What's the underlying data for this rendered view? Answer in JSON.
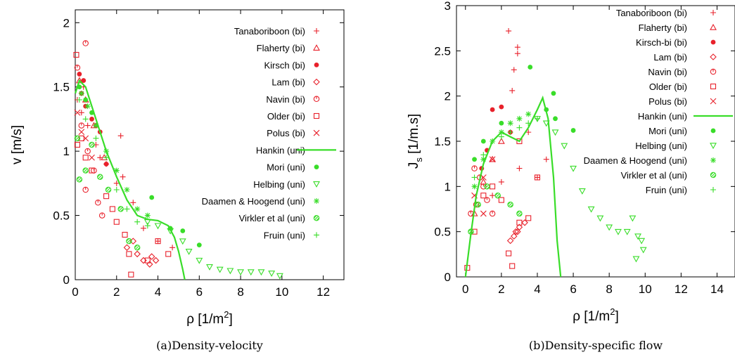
{
  "colors": {
    "bi": "#e8212b",
    "uni": "#39dd29"
  },
  "chart_data": [
    {
      "type": "scatter",
      "caption": "(a)Density-velocity",
      "xlabel": {
        "main": "ρ  [1/m",
        "sup": "2",
        "end": "]"
      },
      "ylabel": "v  [m/s]",
      "xlim": [
        0,
        13
      ],
      "ylim": [
        0,
        2.1
      ],
      "xticks": [
        0,
        2,
        4,
        6,
        8,
        10,
        12
      ],
      "yticks": [
        0,
        0.5,
        1,
        1.5,
        2
      ],
      "yticklabels": [
        "0",
        "0.5",
        "1",
        "1.5",
        "2"
      ],
      "legend_position": "top-right",
      "legend": [
        {
          "name": "Tanaboriboon (bi)",
          "marker": "plus",
          "group": "bi"
        },
        {
          "name": "Flaherty (bi)",
          "marker": "triangle",
          "group": "bi"
        },
        {
          "name": "Kirsch (bi)",
          "marker": "dot",
          "group": "bi"
        },
        {
          "name": "Lam (bi)",
          "marker": "diamond",
          "group": "bi"
        },
        {
          "name": "Navin (bi)",
          "marker": "circlebar",
          "group": "bi"
        },
        {
          "name": "Older (bi)",
          "marker": "square",
          "group": "bi"
        },
        {
          "name": "Polus (bi)",
          "marker": "cross",
          "group": "bi"
        },
        {
          "name": "Hankin (uni)",
          "marker": "line",
          "group": "uni"
        },
        {
          "name": "Mori (uni)",
          "marker": "dot",
          "group": "uni"
        },
        {
          "name": "Helbing (uni)",
          "marker": "triangledown",
          "group": "uni"
        },
        {
          "name": "Daamen & Hoogend (uni)",
          "marker": "star",
          "group": "uni"
        },
        {
          "name": "Virkler et al (uni)",
          "marker": "circlehatch",
          "group": "uni"
        },
        {
          "name": "Fruin (uni)",
          "marker": "plus",
          "group": "uni"
        }
      ],
      "curve": {
        "name": "Hankin (uni)",
        "x": [
          0,
          0.2,
          0.5,
          1,
          1.5,
          2,
          2.5,
          3,
          3.5,
          4,
          4.5,
          4.8,
          5.0,
          5.2,
          5.3
        ],
        "y": [
          1.45,
          1.55,
          1.5,
          1.25,
          1.0,
          0.8,
          0.62,
          0.5,
          0.47,
          0.46,
          0.42,
          0.33,
          0.22,
          0.08,
          0.0
        ]
      },
      "points": {
        "Tanaboriboon (bi)": [
          [
            0.1,
            1.4
          ],
          [
            0.3,
            1.3
          ],
          [
            0.6,
            1.2
          ],
          [
            1.0,
            1.05
          ],
          [
            1.5,
            0.9
          ],
          [
            2.0,
            0.75
          ],
          [
            2.2,
            1.12
          ],
          [
            2.3,
            0.8
          ],
          [
            2.8,
            0.6
          ],
          [
            3.3,
            0.4
          ],
          [
            4.0,
            0.3
          ],
          [
            4.7,
            0.25
          ],
          [
            0.4,
            1.5
          ],
          [
            1.2,
            0.95
          ]
        ],
        "Flaherty (bi)": [
          [
            0.2,
            1.55
          ],
          [
            0.5,
            1.4
          ],
          [
            0.9,
            1.2
          ],
          [
            1.4,
            0.95
          ]
        ],
        "Kirsch (bi)": [
          [
            0.2,
            1.6
          ],
          [
            0.3,
            1.45
          ],
          [
            0.5,
            1.35
          ],
          [
            0.8,
            1.25
          ],
          [
            1.0,
            1.2
          ],
          [
            1.2,
            1.15
          ],
          [
            1.5,
            0.9
          ],
          [
            0.4,
            1.55
          ]
        ],
        "Lam (bi)": [
          [
            2.5,
            0.25
          ],
          [
            3.0,
            0.2
          ],
          [
            3.3,
            0.15
          ],
          [
            3.6,
            0.12
          ],
          [
            3.9,
            0.15
          ],
          [
            2.8,
            0.3
          ],
          [
            3.7,
            0.18
          ]
        ],
        "Navin (bi)": [
          [
            0.1,
            1.65
          ],
          [
            0.5,
            1.84
          ],
          [
            0.3,
            1.2
          ],
          [
            0.6,
            1.0
          ],
          [
            0.9,
            0.85
          ],
          [
            1.1,
            0.6
          ],
          [
            1.3,
            0.5
          ],
          [
            0.5,
            0.7
          ]
        ],
        "Older (bi)": [
          [
            0.05,
            1.75
          ],
          [
            0.1,
            1.05
          ],
          [
            0.3,
            1.1
          ],
          [
            0.5,
            0.95
          ],
          [
            0.8,
            0.85
          ],
          [
            1.5,
            0.65
          ],
          [
            1.8,
            0.55
          ],
          [
            2.0,
            0.45
          ],
          [
            2.4,
            0.35
          ],
          [
            2.6,
            0.2
          ],
          [
            2.7,
            0.04
          ],
          [
            3.5,
            0.15
          ],
          [
            4.0,
            0.3
          ],
          [
            4.5,
            0.2
          ]
        ],
        "Polus (bi)": [
          [
            0.1,
            1.3
          ],
          [
            0.3,
            1.15
          ],
          [
            0.5,
            1.1
          ],
          [
            0.8,
            0.95
          ]
        ],
        "Mori (uni)": [
          [
            0.2,
            1.5
          ],
          [
            0.5,
            1.4
          ],
          [
            0.8,
            1.3
          ],
          [
            3.7,
            0.64
          ],
          [
            4.6,
            0.4
          ],
          [
            5.2,
            0.38
          ],
          [
            6.0,
            0.27
          ]
        ],
        "Helbing (uni)": [
          [
            3.5,
            0.45
          ],
          [
            4.0,
            0.42
          ],
          [
            4.6,
            0.38
          ],
          [
            5.2,
            0.3
          ],
          [
            5.5,
            0.22
          ],
          [
            6.0,
            0.15
          ],
          [
            6.5,
            0.1
          ],
          [
            7.0,
            0.08
          ],
          [
            7.5,
            0.07
          ],
          [
            8.0,
            0.06
          ],
          [
            8.5,
            0.06
          ],
          [
            9.0,
            0.06
          ],
          [
            9.5,
            0.05
          ],
          [
            9.9,
            0.03
          ]
        ],
        "Daamen & Hoogend (uni)": [
          [
            0.3,
            1.45
          ],
          [
            0.6,
            1.35
          ],
          [
            1.0,
            1.2
          ],
          [
            1.5,
            1.0
          ],
          [
            2.0,
            0.85
          ],
          [
            2.5,
            0.7
          ],
          [
            3.0,
            0.55
          ],
          [
            3.5,
            0.5
          ]
        ],
        "Virkler et al (uni)": [
          [
            0.1,
            1.1
          ],
          [
            0.2,
            0.78
          ],
          [
            0.5,
            0.85
          ],
          [
            0.8,
            1.05
          ],
          [
            1.2,
            0.8
          ],
          [
            1.6,
            0.7
          ],
          [
            2.2,
            0.55
          ],
          [
            2.6,
            0.3
          ],
          [
            3.0,
            0.25
          ]
        ],
        "Fruin (uni)": [
          [
            0.2,
            1.4
          ],
          [
            0.5,
            1.25
          ],
          [
            1.0,
            1.1
          ],
          [
            1.5,
            0.95
          ],
          [
            2.0,
            0.7
          ],
          [
            2.5,
            0.55
          ],
          [
            3.0,
            0.45
          ],
          [
            3.5,
            0.42
          ]
        ]
      }
    },
    {
      "type": "scatter",
      "caption": "(b)Density-specific flow",
      "xlabel": {
        "main": "ρ  [1/m",
        "sup": "2",
        "end": "]"
      },
      "ylabel": {
        "main": "J",
        "sub": "s",
        "end": "  [1/m.s]"
      },
      "xlim": [
        -0.5,
        15
      ],
      "ylim": [
        0,
        3
      ],
      "xticks": [
        0,
        2,
        4,
        6,
        8,
        10,
        12,
        14
      ],
      "yticks": [
        0,
        0.5,
        1,
        1.5,
        2,
        2.5,
        3
      ],
      "yticklabels": [
        "0",
        "0.5",
        "1",
        "1.5",
        "2",
        "2.5",
        "3"
      ],
      "legend_position": "top-right",
      "legend": [
        {
          "name": "Tanaboriboon (bi)",
          "marker": "plus",
          "group": "bi"
        },
        {
          "name": "Flaherty (bi)",
          "marker": "triangle",
          "group": "bi"
        },
        {
          "name": "Kirsch-bi (bi)",
          "marker": "dot",
          "group": "bi"
        },
        {
          "name": "Lam (bi)",
          "marker": "diamond",
          "group": "bi"
        },
        {
          "name": "Navin (bi)",
          "marker": "circlebar",
          "group": "bi"
        },
        {
          "name": "Older (bi)",
          "marker": "square",
          "group": "bi"
        },
        {
          "name": "Polus (bi)",
          "marker": "cross",
          "group": "bi"
        },
        {
          "name": "Hankin (uni)",
          "marker": "line",
          "group": "uni"
        },
        {
          "name": "Mori (uni)",
          "marker": "dot",
          "group": "uni"
        },
        {
          "name": "Helbing (uni)",
          "marker": "triangledown",
          "group": "uni"
        },
        {
          "name": "Daamen & Hoogend (uni)",
          "marker": "star",
          "group": "uni"
        },
        {
          "name": "Virkler et al (uni)",
          "marker": "circlehatch",
          "group": "uni"
        },
        {
          "name": "Fruin (uni)",
          "marker": "plus",
          "group": "uni"
        }
      ],
      "curve": {
        "name": "Hankin (uni)",
        "x": [
          0,
          0.3,
          0.6,
          1.0,
          1.5,
          2.0,
          2.5,
          3.0,
          3.5,
          4.0,
          4.3,
          4.6,
          4.9,
          5.1,
          5.3
        ],
        "y": [
          0,
          0.47,
          0.9,
          1.25,
          1.5,
          1.6,
          1.55,
          1.5,
          1.65,
          1.85,
          1.98,
          1.75,
          1.1,
          0.4,
          0.0
        ]
      },
      "points": {
        "Tanaboriboon (bi)": [
          [
            2.4,
            2.72
          ],
          [
            2.9,
            2.54
          ],
          [
            2.9,
            2.47
          ],
          [
            2.7,
            2.29
          ],
          [
            2.6,
            2.06
          ],
          [
            3.5,
            1.6
          ],
          [
            3.0,
            1.2
          ],
          [
            2.0,
            1.05
          ],
          [
            1.5,
            0.9
          ],
          [
            4.5,
            1.3
          ],
          [
            4.0,
            1.1
          ]
        ],
        "Flaherty (bi)": [
          [
            0.5,
            0.7
          ],
          [
            1.0,
            1.05
          ],
          [
            1.5,
            1.3
          ],
          [
            2.0,
            1.5
          ]
        ],
        "Kirsch-bi (bi)": [
          [
            1.5,
            1.85
          ],
          [
            2.0,
            1.88
          ],
          [
            2.5,
            1.6
          ],
          [
            1.2,
            1.4
          ],
          [
            0.9,
            1.2
          ]
        ],
        "Lam (bi)": [
          [
            2.5,
            0.4
          ],
          [
            2.8,
            0.5
          ],
          [
            3.0,
            0.55
          ],
          [
            3.3,
            0.6
          ],
          [
            2.7,
            0.45
          ],
          [
            2.9,
            0.5
          ]
        ],
        "Navin (bi)": [
          [
            0.3,
            0.7
          ],
          [
            0.6,
            0.8
          ],
          [
            1.0,
            1.0
          ],
          [
            1.2,
            0.85
          ],
          [
            0.8,
            1.1
          ],
          [
            1.5,
            0.7
          ],
          [
            0.5,
            1.2
          ]
        ],
        "Older (bi)": [
          [
            0.1,
            0.1
          ],
          [
            0.5,
            0.5
          ],
          [
            1.0,
            0.9
          ],
          [
            1.5,
            1.0
          ],
          [
            2.0,
            0.85
          ],
          [
            2.4,
            0.26
          ],
          [
            2.6,
            0.12
          ],
          [
            3.0,
            0.6
          ],
          [
            3.5,
            0.65
          ],
          [
            4.0,
            1.1
          ],
          [
            3.0,
            1.5
          ]
        ],
        "Polus (bi)": [
          [
            0.5,
            0.9
          ],
          [
            1.0,
            1.1
          ],
          [
            1.5,
            1.3
          ],
          [
            1.0,
            0.7
          ]
        ],
        "Mori (uni)": [
          [
            0.5,
            1.3
          ],
          [
            1.0,
            1.5
          ],
          [
            2.0,
            1.7
          ],
          [
            3.6,
            2.32
          ],
          [
            4.9,
            2.03
          ],
          [
            4.5,
            1.85
          ],
          [
            6.0,
            1.62
          ],
          [
            5.0,
            1.75
          ]
        ],
        "Helbing (uni)": [
          [
            4.0,
            1.75
          ],
          [
            4.5,
            1.7
          ],
          [
            5.0,
            1.6
          ],
          [
            5.5,
            1.45
          ],
          [
            6.0,
            1.2
          ],
          [
            6.5,
            0.95
          ],
          [
            7.0,
            0.75
          ],
          [
            7.5,
            0.65
          ],
          [
            8.0,
            0.55
          ],
          [
            8.5,
            0.5
          ],
          [
            9.0,
            0.5
          ],
          [
            9.3,
            0.65
          ],
          [
            9.6,
            0.45
          ],
          [
            9.8,
            0.4
          ],
          [
            9.9,
            0.3
          ],
          [
            9.5,
            0.2
          ]
        ],
        "Daamen & Hoogend (uni)": [
          [
            0.5,
            1.0
          ],
          [
            1.0,
            1.3
          ],
          [
            1.5,
            1.5
          ],
          [
            2.0,
            1.6
          ],
          [
            2.5,
            1.7
          ],
          [
            3.0,
            1.75
          ],
          [
            3.5,
            1.8
          ]
        ],
        "Virkler et al (uni)": [
          [
            0.3,
            0.5
          ],
          [
            0.7,
            0.8
          ],
          [
            1.2,
            1.0
          ],
          [
            1.8,
            0.9
          ],
          [
            2.5,
            0.8
          ],
          [
            3.0,
            0.7
          ]
        ],
        "Fruin (uni)": [
          [
            0.5,
            1.1
          ],
          [
            1.0,
            1.35
          ],
          [
            1.5,
            1.5
          ],
          [
            2.0,
            1.55
          ],
          [
            2.5,
            1.6
          ],
          [
            3.0,
            1.65
          ],
          [
            3.5,
            1.7
          ],
          [
            4.0,
            1.75
          ]
        ]
      }
    }
  ]
}
